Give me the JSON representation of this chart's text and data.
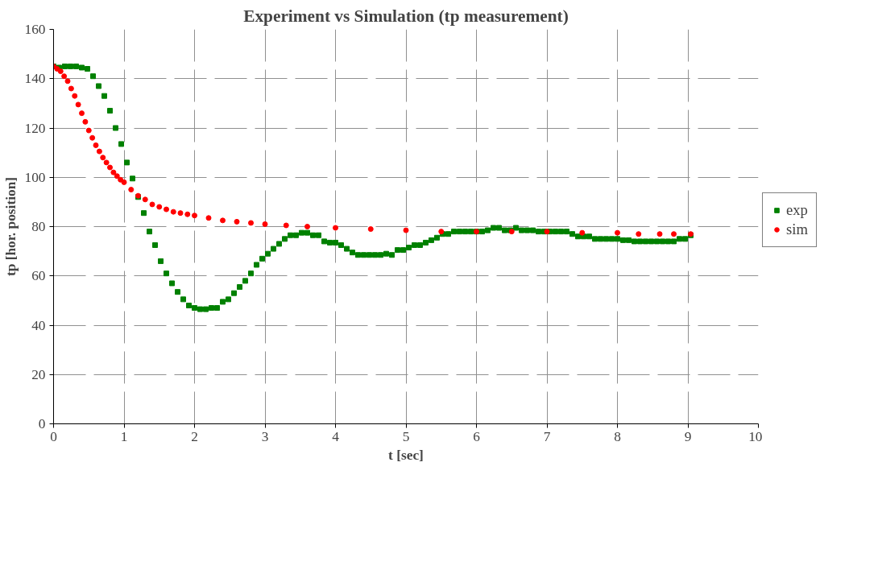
{
  "chart_data": {
    "type": "scatter",
    "title": "Experiment vs Simulation (tp measurement)",
    "xlabel": "t [sec]",
    "ylabel": "tp [hor. position]",
    "xlim": [
      0,
      10
    ],
    "xticks": [
      0,
      1,
      2,
      3,
      4,
      5,
      6,
      7,
      8,
      9,
      10
    ],
    "ylim": [
      0,
      160
    ],
    "yticks": [
      0,
      20,
      40,
      60,
      80,
      100,
      120,
      140,
      160
    ],
    "grid": true,
    "legend": "right",
    "series": [
      {
        "name": "exp",
        "color": "#008000",
        "marker": "square",
        "x": [
          0,
          0.08,
          0.16,
          0.24,
          0.32,
          0.4,
          0.48,
          0.56,
          0.64,
          0.72,
          0.8,
          0.88,
          0.96,
          1.04,
          1.12,
          1.2,
          1.28,
          1.36,
          1.44,
          1.52,
          1.6,
          1.68,
          1.76,
          1.84,
          1.92,
          2.0,
          2.08,
          2.16,
          2.24,
          2.32,
          2.4,
          2.48,
          2.56,
          2.64,
          2.72,
          2.8,
          2.88,
          2.96,
          3.04,
          3.12,
          3.2,
          3.28,
          3.36,
          3.44,
          3.52,
          3.6,
          3.68,
          3.76,
          3.84,
          3.92,
          4.0,
          4.08,
          4.16,
          4.24,
          4.32,
          4.4,
          4.48,
          4.56,
          4.64,
          4.72,
          4.8,
          4.88,
          4.96,
          5.04,
          5.12,
          5.2,
          5.28,
          5.36,
          5.44,
          5.52,
          5.6,
          5.68,
          5.76,
          5.84,
          5.92,
          6.0,
          6.08,
          6.16,
          6.24,
          6.32,
          6.4,
          6.48,
          6.56,
          6.64,
          6.72,
          6.8,
          6.88,
          6.96,
          7.04,
          7.12,
          7.2,
          7.28,
          7.36,
          7.44,
          7.52,
          7.6,
          7.68,
          7.76,
          7.84,
          7.92,
          8.0,
          8.08,
          8.16,
          8.24,
          8.32,
          8.4,
          8.48,
          8.56,
          8.64,
          8.72,
          8.8,
          8.88,
          8.96,
          9.04
        ],
        "values": [
          145,
          144.5,
          145,
          145,
          145,
          144.5,
          144,
          141,
          137,
          133,
          127,
          120,
          113.5,
          106,
          99.5,
          92,
          85.5,
          78,
          72.5,
          66,
          61,
          57,
          53.5,
          50.5,
          48,
          47,
          46.5,
          46.5,
          47,
          47,
          49.5,
          50.5,
          53,
          55.5,
          58,
          61,
          64.5,
          67,
          69,
          71,
          73,
          75,
          76.5,
          76.5,
          77.5,
          77.5,
          76.5,
          76.5,
          74,
          73.5,
          73.5,
          72.5,
          71,
          69.5,
          68.5,
          68.5,
          68.5,
          68.5,
          68.5,
          69,
          68.5,
          70.5,
          70.5,
          71.5,
          72.5,
          72.5,
          73.5,
          74.5,
          75.5,
          77,
          77,
          78,
          78,
          78,
          78,
          78,
          78,
          78.5,
          79.5,
          79.5,
          78.5,
          78.5,
          79.5,
          78.5,
          78.5,
          78.5,
          78,
          78,
          78,
          78,
          78,
          78,
          77,
          76,
          76,
          76,
          75,
          75,
          75,
          75,
          75,
          74.5,
          74.5,
          74,
          74,
          74,
          74,
          74,
          74,
          74,
          74,
          75,
          75,
          76.5
        ]
      },
      {
        "name": "sim",
        "color": "#ff0000",
        "marker": "circle",
        "x": [
          0,
          0.05,
          0.1,
          0.15,
          0.2,
          0.25,
          0.3,
          0.35,
          0.4,
          0.45,
          0.5,
          0.55,
          0.6,
          0.65,
          0.7,
          0.75,
          0.8,
          0.85,
          0.9,
          0.95,
          1.0,
          1.1,
          1.2,
          1.3,
          1.4,
          1.5,
          1.6,
          1.7,
          1.8,
          1.9,
          2.0,
          2.2,
          2.4,
          2.6,
          2.8,
          3.0,
          3.3,
          3.6,
          4.0,
          4.5,
          5.0,
          5.5,
          6.0,
          6.5,
          7.0,
          7.5,
          8.0,
          8.3,
          8.6,
          8.8,
          9.04
        ],
        "values": [
          145,
          144,
          143,
          141,
          139,
          136,
          133,
          129.5,
          126,
          122.5,
          119,
          116,
          113,
          110.5,
          108,
          106,
          104,
          102,
          100.5,
          99,
          98,
          95,
          92.5,
          91,
          89,
          88,
          87,
          86,
          85.5,
          85,
          84.5,
          83.5,
          82.5,
          82,
          81.5,
          81,
          80.5,
          80,
          79.5,
          79,
          78.5,
          78,
          78,
          78,
          78,
          77.5,
          77.5,
          77,
          77,
          77,
          77
        ]
      }
    ]
  }
}
